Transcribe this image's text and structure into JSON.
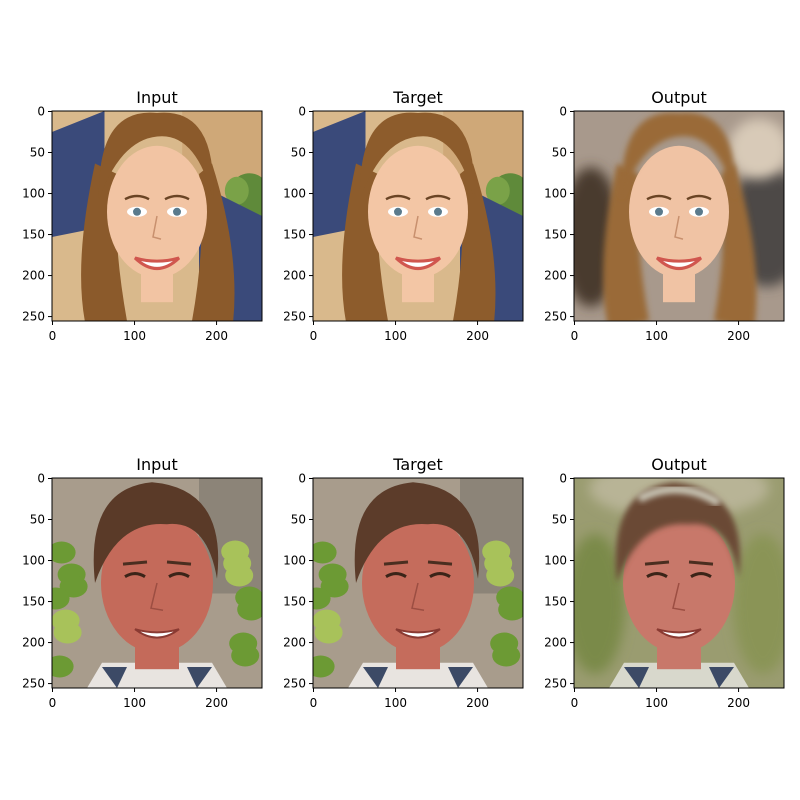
{
  "figure": {
    "panels": [
      {
        "title": "Input",
        "row": 0,
        "col": 0,
        "subject": "young woman, long brown hair, blue top",
        "background": "warm beige wall, green plant",
        "skin": "#f2c4a3",
        "hair": "#8b5a2b",
        "clothing": "#3a4a7a"
      },
      {
        "title": "Target",
        "row": 0,
        "col": 1,
        "subject": "young woman, long brown hair, blue top",
        "background": "warm beige wall, green plant",
        "skin": "#f3c6a5",
        "hair": "#8d5c2c",
        "clothing": "#3a4a7a"
      },
      {
        "title": "Output",
        "row": 0,
        "col": 2,
        "subject": "young woman, reconstructed",
        "background": "blurred grey-brown",
        "skin": "#f0c3a4",
        "hair": "#9a6a38",
        "clothing": "#4a3a2e"
      },
      {
        "title": "Input",
        "row": 1,
        "col": 0,
        "subject": "middle-aged man, brown hair, smiling",
        "background": "green foliage, grey wall",
        "skin": "#c46a5a",
        "hair": "#5a3a28",
        "clothing": "#e8e4e0"
      },
      {
        "title": "Target",
        "row": 1,
        "col": 1,
        "subject": "middle-aged man, brown hair, smiling",
        "background": "green foliage, grey wall",
        "skin": "#c56c5c",
        "hair": "#5c3c2a",
        "clothing": "#e8e4e0"
      },
      {
        "title": "Output",
        "row": 1,
        "col": 2,
        "subject": "middle-aged man, reconstructed",
        "background": "blurred olive green",
        "skin": "#c8786a",
        "hair": "#6a4a36",
        "clothing": "#d8d8cc"
      }
    ],
    "x_ticks": [
      "0",
      "100",
      "200"
    ],
    "y_ticks": [
      "0",
      "50",
      "100",
      "150",
      "200",
      "250"
    ]
  }
}
